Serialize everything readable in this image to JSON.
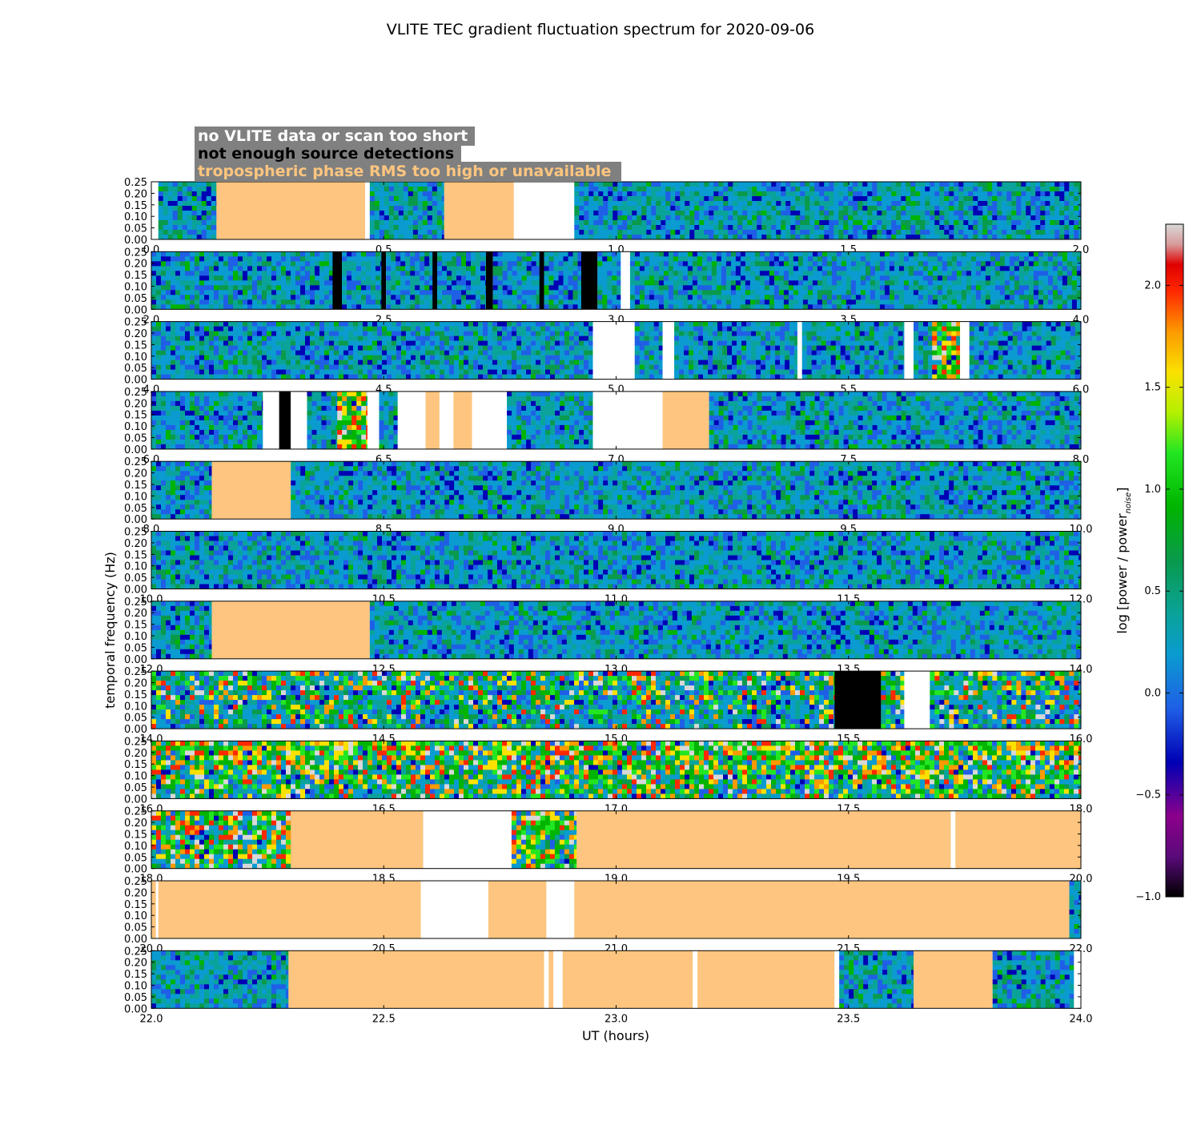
{
  "chart_data": {
    "type": "heatmap",
    "title": "VLITE TEC gradient fluctuation spectrum for 2020-09-06",
    "xlabel": "UT (hours)",
    "ylabel": "temporal frequency (Hz)",
    "ylim": [
      0,
      0.25
    ],
    "yticks": [
      "0.00",
      "0.05",
      "0.10",
      "0.15",
      "0.20",
      "0.25"
    ],
    "colorbar": {
      "label": "log [power / power",
      "label_sub": "noise",
      "label_close": "]",
      "range": [
        -1.0,
        2.3
      ],
      "ticks": [
        "−1.0",
        "−0.5",
        "0.0",
        "0.5",
        "1.0",
        "1.5",
        "2.0"
      ]
    },
    "legend": [
      {
        "text": "no VLITE data or scan too short",
        "color": "#ffffff"
      },
      {
        "text": "not enough source detections",
        "color": "#000000"
      },
      {
        "text": "tropospheric phase RMS too high or unavailable",
        "color": "#fdc57f"
      }
    ],
    "legend_box_color": "#808080",
    "flag_colors": {
      "none": "#ffffff",
      "detections": "#000000",
      "troposphere": "#fdc57f"
    },
    "panels": [
      {
        "xlim": [
          0,
          2
        ],
        "xticks": [
          "0.0",
          "0.5",
          "1.0",
          "1.5",
          "2.0"
        ],
        "level": 0,
        "segments": [
          [
            0,
            0.015,
            "none"
          ],
          [
            0.015,
            0.14,
            "data"
          ],
          [
            0.14,
            0.46,
            "troposphere"
          ],
          [
            0.46,
            0.47,
            "none"
          ],
          [
            0.47,
            0.63,
            "data"
          ],
          [
            0.63,
            0.78,
            "troposphere"
          ],
          [
            0.78,
            0.91,
            "none"
          ],
          [
            0.91,
            2.0,
            "data"
          ]
        ]
      },
      {
        "xlim": [
          2,
          4
        ],
        "xticks": [
          "2.0",
          "2.5",
          "3.0",
          "3.5",
          "4.0"
        ],
        "level": 0,
        "segments": [
          [
            2.0,
            2.39,
            "data"
          ],
          [
            2.39,
            2.41,
            "detections"
          ],
          [
            2.41,
            2.495,
            "data"
          ],
          [
            2.495,
            2.505,
            "detections"
          ],
          [
            2.505,
            2.605,
            "data"
          ],
          [
            2.605,
            2.615,
            "detections"
          ],
          [
            2.615,
            2.72,
            "data"
          ],
          [
            2.72,
            2.735,
            "detections"
          ],
          [
            2.735,
            2.835,
            "data"
          ],
          [
            2.835,
            2.845,
            "detections"
          ],
          [
            2.845,
            2.925,
            "data"
          ],
          [
            2.925,
            2.96,
            "detections"
          ],
          [
            2.96,
            3.01,
            "data"
          ],
          [
            3.01,
            3.03,
            "none"
          ],
          [
            3.03,
            4.0,
            "data"
          ]
        ]
      },
      {
        "xlim": [
          4,
          6
        ],
        "xticks": [
          "4.0",
          "4.5",
          "5.0",
          "5.5",
          "6.0"
        ],
        "level": 0,
        "segments": [
          [
            4.0,
            4.95,
            "data"
          ],
          [
            4.95,
            5.04,
            "none"
          ],
          [
            5.04,
            5.1,
            "data"
          ],
          [
            5.1,
            5.125,
            "none"
          ],
          [
            5.125,
            5.39,
            "data"
          ],
          [
            5.39,
            5.4,
            "none"
          ],
          [
            5.4,
            5.62,
            "data"
          ],
          [
            5.62,
            5.64,
            "none"
          ],
          [
            5.64,
            5.68,
            "data"
          ],
          [
            5.68,
            5.74,
            "data",
            "hot"
          ],
          [
            5.74,
            5.76,
            "none"
          ],
          [
            5.76,
            6.0,
            "data"
          ]
        ]
      },
      {
        "xlim": [
          6,
          8
        ],
        "xticks": [
          "6.0",
          "6.5",
          "7.0",
          "7.5",
          "8.0"
        ],
        "level": 0,
        "segments": [
          [
            6.0,
            6.24,
            "data"
          ],
          [
            6.24,
            6.275,
            "none"
          ],
          [
            6.275,
            6.3,
            "detections"
          ],
          [
            6.3,
            6.335,
            "none"
          ],
          [
            6.335,
            6.4,
            "data"
          ],
          [
            6.4,
            6.465,
            "data",
            "hot"
          ],
          [
            6.465,
            6.49,
            "none"
          ],
          [
            6.49,
            6.53,
            "data"
          ],
          [
            6.53,
            6.59,
            "none"
          ],
          [
            6.59,
            6.62,
            "troposphere"
          ],
          [
            6.62,
            6.65,
            "none"
          ],
          [
            6.65,
            6.69,
            "troposphere"
          ],
          [
            6.69,
            6.765,
            "none"
          ],
          [
            6.765,
            6.95,
            "data"
          ],
          [
            6.95,
            7.1,
            "none"
          ],
          [
            7.1,
            7.2,
            "troposphere"
          ],
          [
            7.2,
            8.0,
            "data"
          ]
        ]
      },
      {
        "xlim": [
          8,
          10
        ],
        "xticks": [
          "8.0",
          "8.5",
          "9.0",
          "9.5",
          "10.0"
        ],
        "level": 0,
        "segments": [
          [
            8.0,
            8.13,
            "data"
          ],
          [
            8.13,
            8.3,
            "troposphere"
          ],
          [
            8.3,
            10.0,
            "data"
          ]
        ]
      },
      {
        "xlim": [
          10,
          12
        ],
        "xticks": [
          "10.0",
          "10.5",
          "11.0",
          "11.5",
          "12.0"
        ],
        "level": 0,
        "segments": [
          [
            10.0,
            12.0,
            "data"
          ]
        ]
      },
      {
        "xlim": [
          12,
          14
        ],
        "xticks": [
          "12.0",
          "12.5",
          "13.0",
          "13.5",
          "14.0"
        ],
        "level": 0,
        "segments": [
          [
            12.0,
            12.13,
            "data"
          ],
          [
            12.13,
            12.47,
            "troposphere"
          ],
          [
            12.47,
            14.0,
            "data"
          ]
        ]
      },
      {
        "xlim": [
          14,
          16
        ],
        "xticks": [
          "14.0",
          "14.5",
          "15.0",
          "15.5",
          "16.0"
        ],
        "level": 1,
        "segments": [
          [
            14.0,
            15.47,
            "data"
          ],
          [
            15.47,
            15.57,
            "detections"
          ],
          [
            15.57,
            15.62,
            "data"
          ],
          [
            15.62,
            15.675,
            "none"
          ],
          [
            15.675,
            16.0,
            "data"
          ]
        ]
      },
      {
        "xlim": [
          16,
          18
        ],
        "xticks": [
          "16.0",
          "16.5",
          "17.0",
          "17.5",
          "18.0"
        ],
        "level": 2,
        "segments": [
          [
            16.0,
            18.0,
            "data"
          ]
        ]
      },
      {
        "xlim": [
          18,
          20
        ],
        "xticks": [
          "18.0",
          "18.5",
          "19.0",
          "19.5",
          "20.0"
        ],
        "level": 2,
        "segments": [
          [
            18.0,
            18.3,
            "data"
          ],
          [
            18.3,
            18.585,
            "troposphere"
          ],
          [
            18.585,
            18.775,
            "none"
          ],
          [
            18.775,
            18.915,
            "data"
          ],
          [
            18.915,
            19.72,
            "troposphere"
          ],
          [
            19.72,
            19.73,
            "none"
          ],
          [
            19.73,
            20.0,
            "troposphere"
          ]
        ]
      },
      {
        "xlim": [
          20,
          22
        ],
        "xticks": [
          "20.0",
          "20.5",
          "21.0",
          "21.5",
          "22.0"
        ],
        "level": 0,
        "segments": [
          [
            20.0,
            20.01,
            "troposphere"
          ],
          [
            20.01,
            20.015,
            "none"
          ],
          [
            20.015,
            20.58,
            "troposphere"
          ],
          [
            20.58,
            20.725,
            "none"
          ],
          [
            20.725,
            20.85,
            "troposphere"
          ],
          [
            20.85,
            20.91,
            "none"
          ],
          [
            20.91,
            21.975,
            "troposphere"
          ],
          [
            21.975,
            22.0,
            "data"
          ]
        ]
      },
      {
        "xlim": [
          22,
          24
        ],
        "xticks": [
          "22.0",
          "22.5",
          "23.0",
          "23.5",
          "24.0"
        ],
        "level": 0,
        "segments": [
          [
            22.0,
            22.295,
            "data"
          ],
          [
            22.295,
            22.845,
            "troposphere"
          ],
          [
            22.845,
            22.855,
            "none"
          ],
          [
            22.855,
            22.865,
            "troposphere"
          ],
          [
            22.865,
            22.885,
            "none"
          ],
          [
            22.885,
            23.165,
            "troposphere"
          ],
          [
            23.165,
            23.175,
            "none"
          ],
          [
            23.175,
            23.47,
            "troposphere"
          ],
          [
            23.47,
            23.48,
            "none"
          ],
          [
            23.48,
            23.64,
            "data"
          ],
          [
            23.64,
            23.81,
            "troposphere"
          ],
          [
            23.81,
            23.985,
            "data"
          ],
          [
            23.985,
            24.0,
            "none"
          ]
        ]
      }
    ]
  }
}
